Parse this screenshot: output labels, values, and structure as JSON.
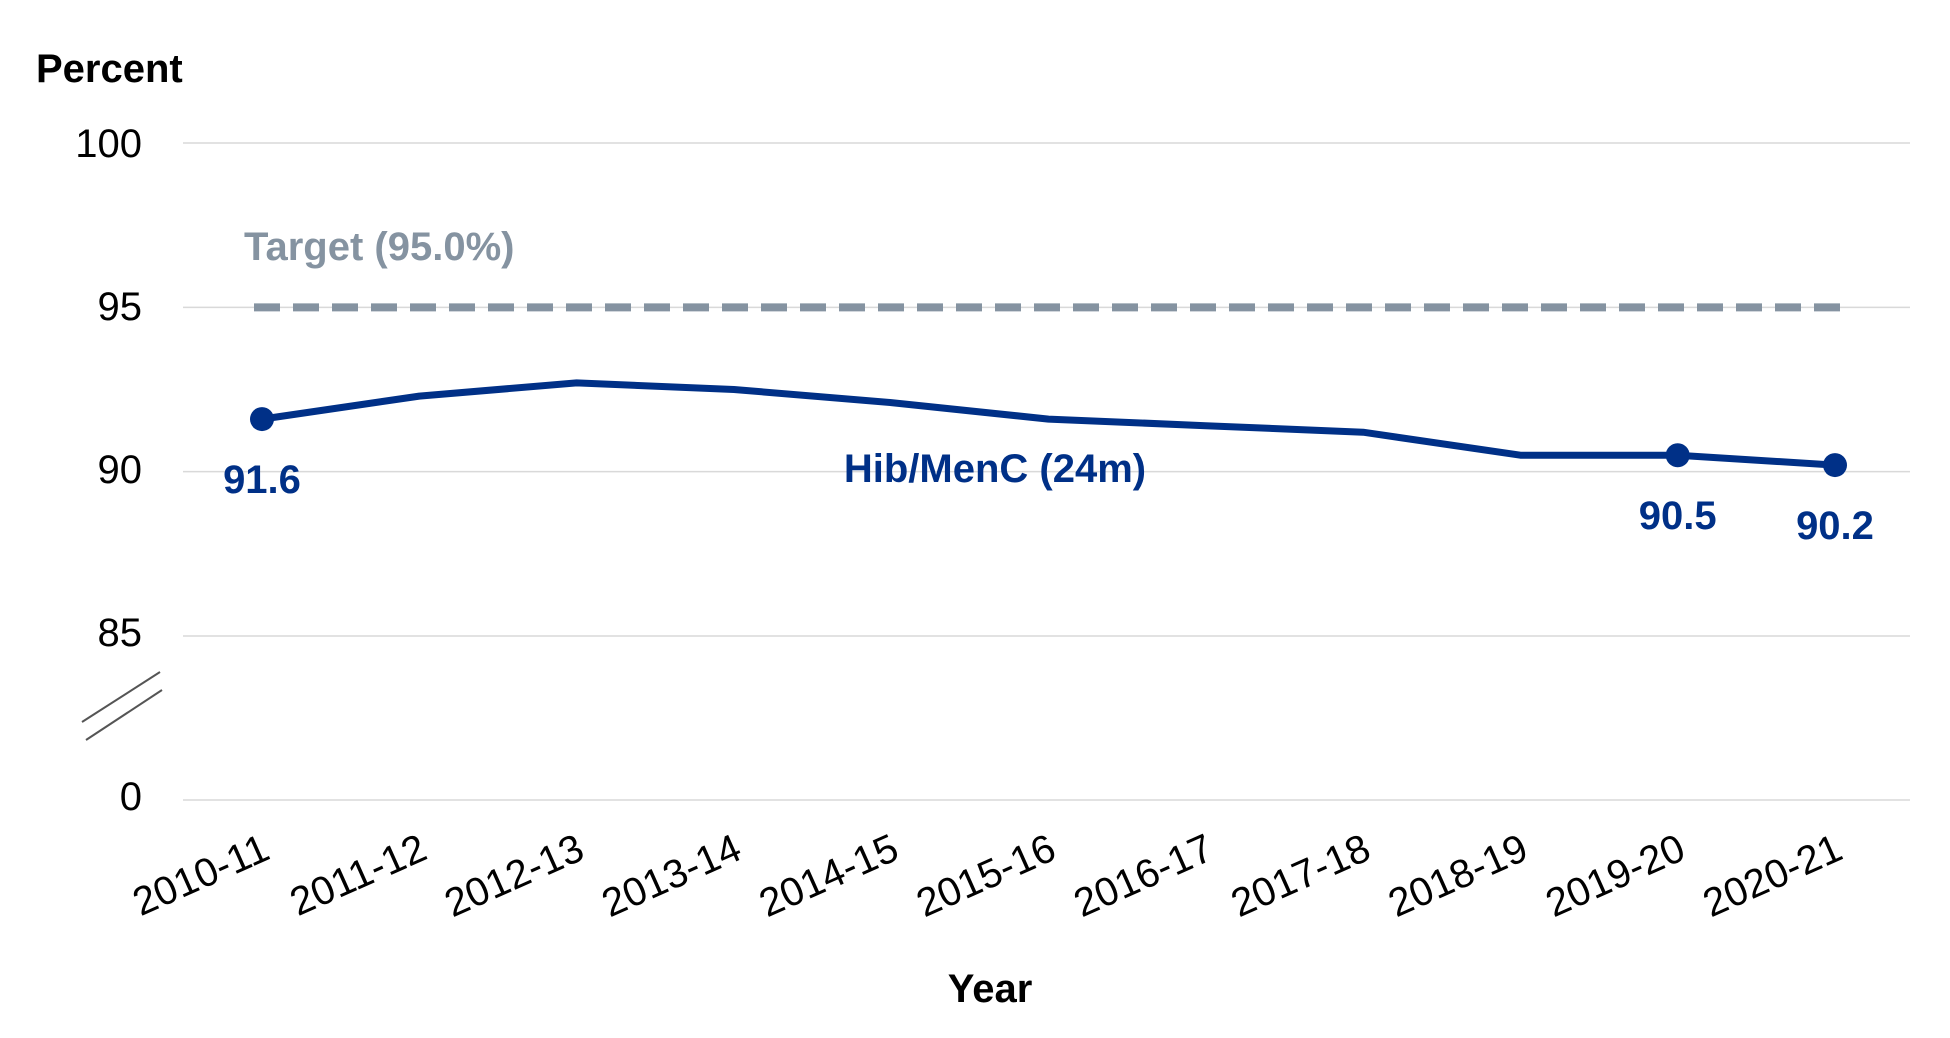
{
  "chart_data": {
    "type": "line",
    "ylabel": "Percent",
    "xlabel": "Year",
    "categories": [
      "2010-11",
      "2011-12",
      "2012-13",
      "2013-14",
      "2014-15",
      "2015-16",
      "2016-17",
      "2017-18",
      "2018-19",
      "2019-20",
      "2020-21"
    ],
    "yticks": [
      "0",
      "85",
      "90",
      "95",
      "100"
    ],
    "ylim": [
      85,
      100
    ],
    "axis_break": true,
    "grid": true,
    "series": [
      {
        "name": "Hib/MenC (24m)",
        "color": "#003087",
        "values": [
          91.6,
          92.3,
          92.7,
          92.5,
          92.1,
          91.6,
          91.4,
          91.2,
          90.5,
          90.5,
          90.2
        ],
        "data_labels": [
          {
            "index": 0,
            "text": "91.6"
          },
          {
            "index": 9,
            "text": "90.5"
          },
          {
            "index": 10,
            "text": "90.2"
          }
        ]
      }
    ],
    "target": {
      "label": "Target (95.0%)",
      "value": 95.0,
      "color": "#8593A1"
    }
  }
}
